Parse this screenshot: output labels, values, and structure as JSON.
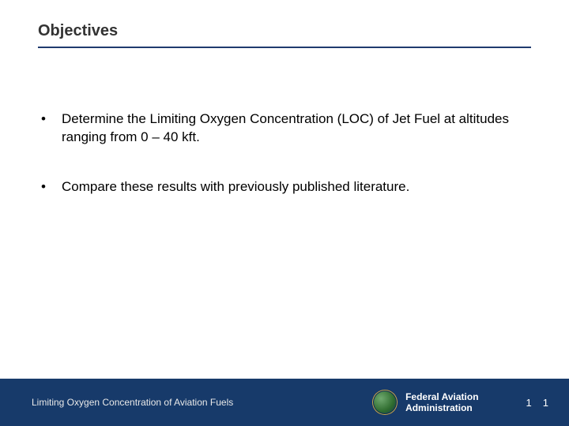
{
  "slide": {
    "title": "Objectives",
    "bullets": [
      "Determine the Limiting Oxygen Concentration (LOC) of Jet Fuel at altitudes ranging from 0 – 40 kft.",
      "Compare these results with previously published literature."
    ]
  },
  "footer": {
    "left_text": "Limiting Oxygen Concentration of Aviation Fuels",
    "agency_line1": "Federal Aviation",
    "agency_line2": "Administration",
    "page_number_a": "1",
    "page_number_b": "1"
  },
  "colors": {
    "footer_bg": "#173a6a",
    "title_underline": "#1f3a6e",
    "text": "#000000",
    "title_text": "#333333",
    "footer_text": "#ffffff"
  },
  "typography": {
    "title_fontsize": 20,
    "body_fontsize": 17,
    "footer_fontsize": 12
  }
}
